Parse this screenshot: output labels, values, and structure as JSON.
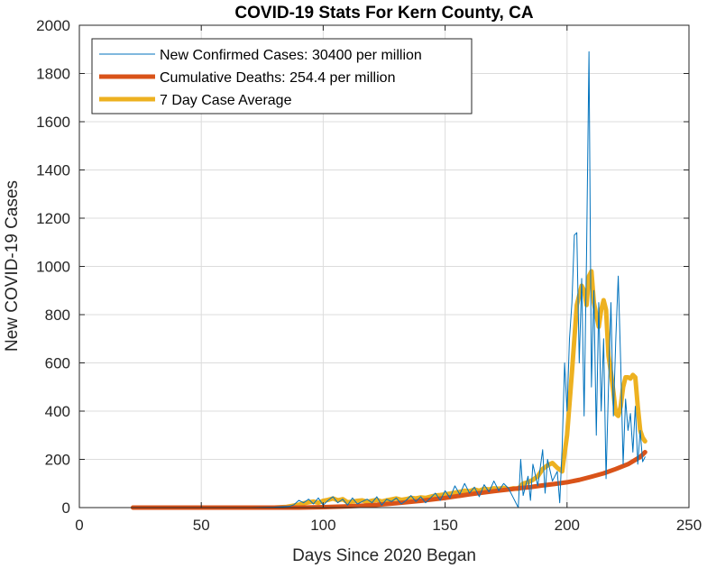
{
  "chart_data": {
    "type": "line",
    "title": "COVID-19 Stats For Kern County, CA",
    "xlabel": "Days Since 2020 Began",
    "ylabel": "New COVID-19 Cases",
    "xlim": [
      0,
      250
    ],
    "ylim": [
      0,
      2000
    ],
    "xticks": [
      0,
      50,
      100,
      150,
      200,
      250
    ],
    "yticks": [
      0,
      200,
      400,
      600,
      800,
      1000,
      1200,
      1400,
      1600,
      1800,
      2000
    ],
    "grid": true,
    "legend_position": "top-left",
    "series": [
      {
        "name": "New Confirmed Cases: 30400 per million",
        "color": "#0072BD",
        "line_width": 1,
        "x": [
          22,
          30,
          40,
          50,
          60,
          70,
          80,
          86,
          88,
          90,
          92,
          94,
          96,
          98,
          100,
          102,
          104,
          106,
          108,
          110,
          112,
          114,
          116,
          118,
          120,
          122,
          124,
          126,
          128,
          130,
          132,
          134,
          136,
          138,
          140,
          142,
          144,
          146,
          148,
          150,
          152,
          154,
          156,
          158,
          160,
          162,
          164,
          166,
          168,
          170,
          172,
          174,
          176,
          178,
          180,
          181,
          182,
          184,
          185,
          186,
          188,
          190,
          191,
          192,
          194,
          196,
          197,
          198,
          199,
          200,
          201,
          202,
          203,
          204,
          205,
          206,
          207,
          208,
          209,
          210,
          211,
          212,
          213,
          214,
          215,
          216,
          217,
          218,
          219,
          220,
          221,
          222,
          223,
          224,
          225,
          226,
          227,
          228,
          229,
          230,
          231,
          232
        ],
        "y": [
          0,
          0,
          0,
          0,
          0,
          0,
          2,
          5,
          12,
          30,
          20,
          35,
          15,
          40,
          10,
          30,
          45,
          20,
          35,
          10,
          40,
          15,
          25,
          35,
          20,
          45,
          10,
          35,
          25,
          40,
          15,
          30,
          50,
          25,
          45,
          20,
          40,
          60,
          30,
          70,
          40,
          90,
          55,
          100,
          60,
          85,
          45,
          95,
          65,
          110,
          70,
          100,
          80,
          40,
          0,
          200,
          50,
          130,
          30,
          180,
          90,
          240,
          60,
          200,
          110,
          150,
          20,
          250,
          600,
          400,
          700,
          850,
          1130,
          1140,
          600,
          950,
          380,
          1050,
          1890,
          500,
          900,
          300,
          850,
          400,
          700,
          120,
          500,
          850,
          380,
          700,
          960,
          600,
          180,
          450,
          320,
          390,
          230,
          420,
          180,
          320,
          190,
          210
        ]
      },
      {
        "name": "Cumulative Deaths: 254.4 per million",
        "color": "#D95319",
        "line_width": 5,
        "x": [
          22,
          40,
          60,
          80,
          90,
          100,
          110,
          120,
          130,
          140,
          150,
          160,
          170,
          180,
          185,
          190,
          195,
          200,
          205,
          210,
          215,
          220,
          225,
          230,
          232
        ],
        "y": [
          0,
          0,
          0,
          0,
          0,
          2,
          5,
          10,
          18,
          28,
          40,
          55,
          68,
          80,
          85,
          92,
          98,
          105,
          115,
          128,
          142,
          160,
          180,
          210,
          230
        ]
      },
      {
        "name": "7 Day Case Average",
        "color": "#EDB120",
        "line_width": 5,
        "x": [
          22,
          40,
          60,
          80,
          85,
          90,
          92,
          94,
          96,
          98,
          100,
          102,
          104,
          106,
          108,
          110,
          112,
          114,
          116,
          118,
          120,
          122,
          124,
          126,
          128,
          130,
          132,
          134,
          136,
          138,
          140,
          142,
          144,
          146,
          148,
          150,
          152,
          154,
          156,
          158,
          160,
          162,
          164,
          166,
          168,
          170,
          172,
          174,
          176,
          178,
          180,
          182,
          184,
          186,
          188,
          190,
          192,
          194,
          196,
          198,
          200,
          202,
          204,
          206,
          207,
          208,
          209,
          210,
          211,
          212,
          213,
          214,
          215,
          216,
          217,
          218,
          219,
          220,
          221,
          222,
          223,
          224,
          225,
          226,
          227,
          228,
          229,
          230,
          231,
          232
        ],
        "y": [
          0,
          0,
          0,
          0,
          3,
          12,
          18,
          22,
          25,
          20,
          28,
          32,
          38,
          30,
          35,
          22,
          25,
          28,
          30,
          24,
          28,
          32,
          25,
          30,
          34,
          38,
          32,
          35,
          40,
          38,
          42,
          40,
          45,
          50,
          52,
          55,
          58,
          62,
          65,
          70,
          68,
          75,
          70,
          78,
          75,
          80,
          78,
          82,
          76,
          80,
          78,
          100,
          105,
          115,
          130,
          160,
          175,
          185,
          165,
          150,
          300,
          560,
          840,
          920,
          900,
          840,
          960,
          980,
          850,
          800,
          750,
          820,
          860,
          820,
          630,
          560,
          480,
          390,
          380,
          420,
          500,
          540,
          540,
          535,
          550,
          540,
          420,
          320,
          290,
          275
        ]
      }
    ]
  }
}
